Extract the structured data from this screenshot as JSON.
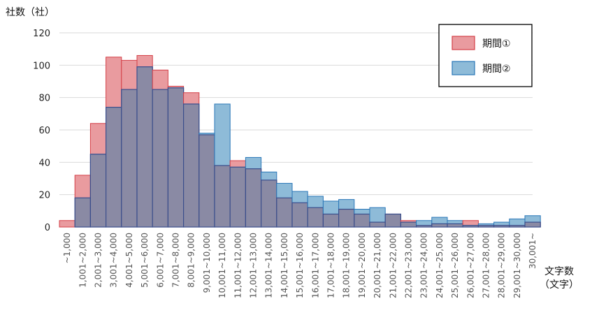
{
  "chart_data": {
    "type": "bar",
    "ylabel": "社数（社）",
    "xlabel_line1": "文字数",
    "xlabel_line2": "（文字）",
    "ylim": [
      0,
      120
    ],
    "yticks": [
      0,
      20,
      40,
      60,
      80,
      100,
      120
    ],
    "grid": true,
    "legend_position": "top-right",
    "categories": [
      "~1,000",
      "1,001~2,000",
      "2,001~3,000",
      "3,001~4,000",
      "4,001~5,000",
      "5,001~6,000",
      "6,001~7,000",
      "7,001~8,000",
      "8,001~9,000",
      "9,001~10,000",
      "10,001~11,000",
      "11,001~12,000",
      "12,001~13,000",
      "13,001~14,000",
      "14,001~15,000",
      "15,001~16,000",
      "16,001~17,000",
      "17,001~18,000",
      "18,001~19,000",
      "19,001~20,000",
      "20,001~21,000",
      "21,001~22,000",
      "22,001~23,000",
      "23,001~24,000",
      "24,001~25,000",
      "25,001~26,000",
      "26,001~27,000",
      "27,001~28,000",
      "28,001~29,000",
      "29,001~30,000",
      "30,001~"
    ],
    "series": [
      {
        "name": "期間①",
        "fill": "#e99b9f",
        "stroke": "#d43f47",
        "values": [
          4,
          32,
          64,
          105,
          103,
          106,
          97,
          87,
          83,
          57,
          38,
          41,
          36,
          29,
          18,
          15,
          12,
          8,
          11,
          8,
          3,
          8,
          4,
          1,
          2,
          2,
          4,
          1,
          1,
          1,
          3
        ]
      },
      {
        "name": "期間②",
        "fill": "#8ebbd8",
        "stroke": "#2a77b8",
        "values": [
          0,
          18,
          45,
          74,
          85,
          99,
          85,
          86,
          76,
          58,
          76,
          37,
          43,
          34,
          27,
          22,
          19,
          16,
          17,
          11,
          12,
          8,
          3,
          4,
          6,
          4,
          1,
          2,
          3,
          5,
          7
        ]
      }
    ],
    "overlap_color": "#8a8aa4",
    "overlap_stroke": "#3a4e8c"
  }
}
